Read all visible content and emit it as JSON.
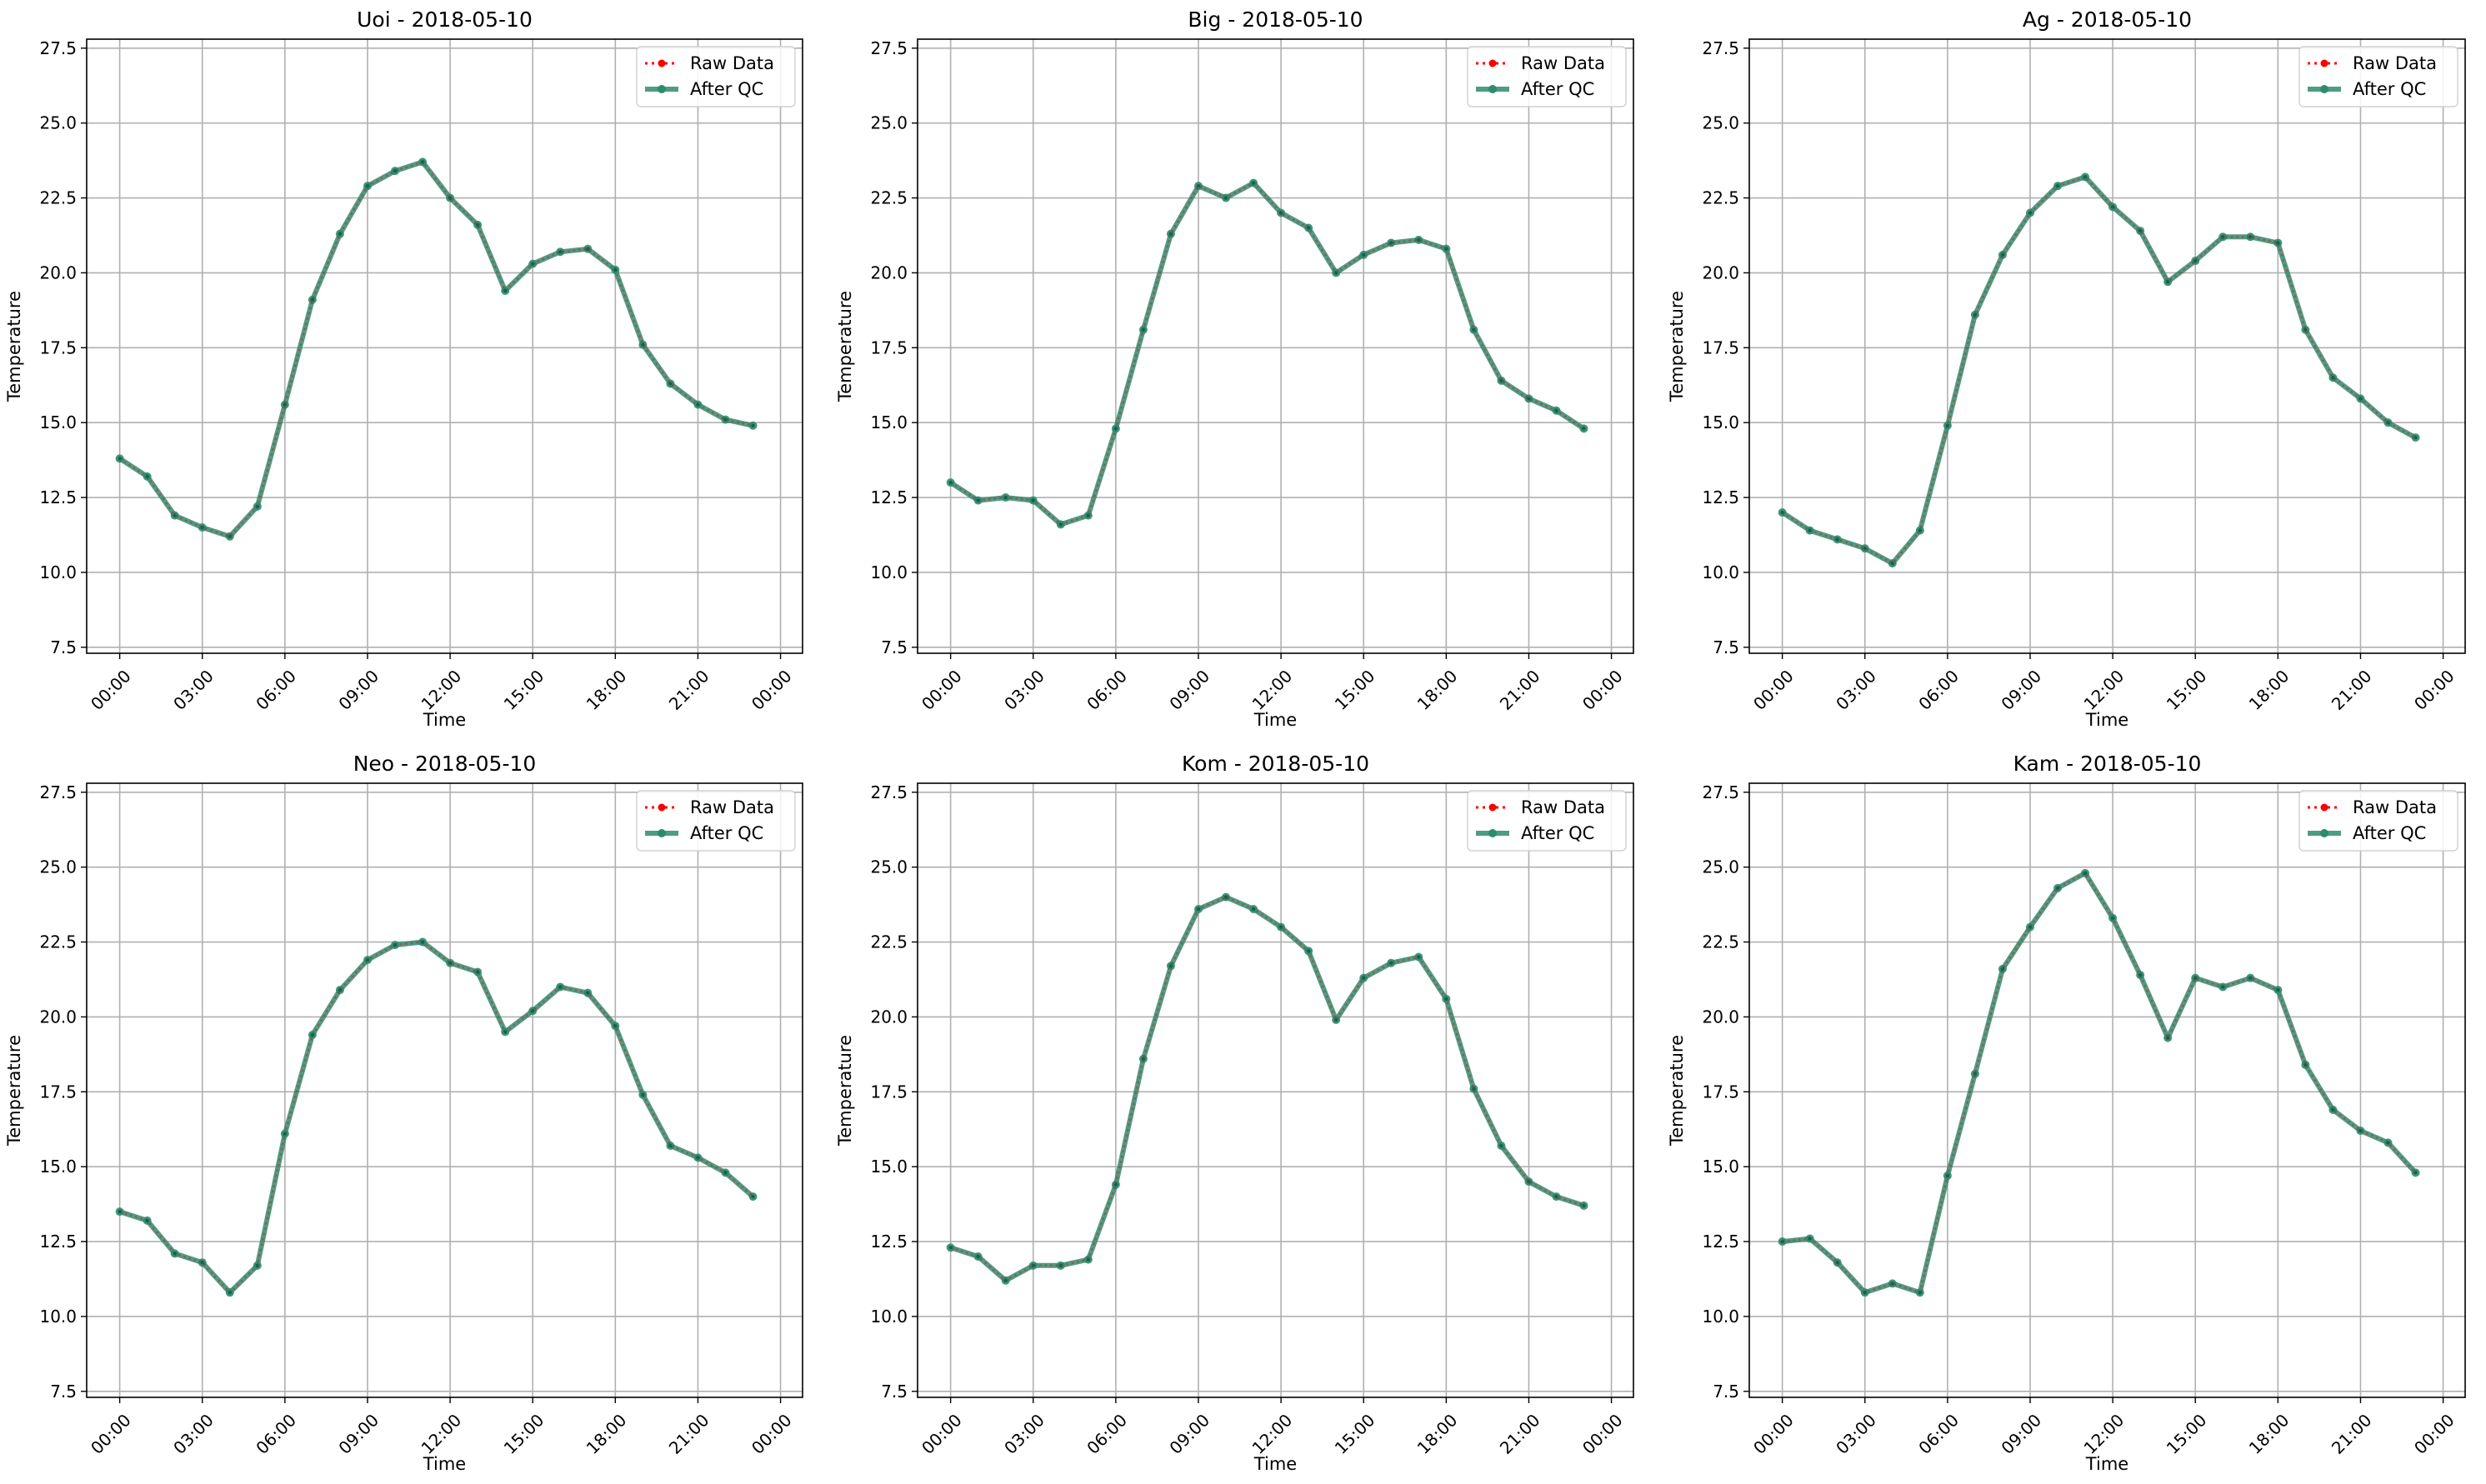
{
  "figure": {
    "grid": true
  },
  "legend": {
    "placement": "top-right",
    "entries": [
      {
        "label": "Raw Data",
        "color": "#ff0000",
        "style": "dotted",
        "marker": "circle"
      },
      {
        "label": "After QC",
        "color": "#2e8b6e",
        "style": "solid",
        "marker": "circle"
      }
    ]
  },
  "chart_data": [
    {
      "type": "line",
      "title": "Uoi - 2018-05-10",
      "xlabel": "Time",
      "ylabel": "Temperature",
      "ylim": [
        7.3,
        27.8
      ],
      "yticks": [
        "7.5",
        "10.0",
        "12.5",
        "15.0",
        "17.5",
        "20.0",
        "22.5",
        "25.0",
        "27.5"
      ],
      "xticks": [
        "00:00",
        "03:00",
        "06:00",
        "09:00",
        "12:00",
        "15:00",
        "18:00",
        "21:00",
        "00:00"
      ],
      "x": [
        "00:00",
        "01:00",
        "02:00",
        "03:00",
        "04:00",
        "05:00",
        "06:00",
        "07:00",
        "08:00",
        "09:00",
        "10:00",
        "11:00",
        "12:00",
        "13:00",
        "14:00",
        "15:00",
        "16:00",
        "17:00",
        "18:00",
        "19:00",
        "20:00",
        "21:00",
        "22:00",
        "23:00"
      ],
      "series": [
        {
          "name": "Raw Data",
          "values": [
            13.8,
            13.2,
            11.9,
            11.5,
            11.2,
            12.2,
            15.6,
            19.1,
            21.3,
            22.9,
            23.4,
            23.7,
            22.5,
            21.6,
            19.4,
            20.3,
            20.7,
            20.8,
            20.1,
            17.6,
            16.3,
            15.6,
            15.1,
            14.9
          ]
        },
        {
          "name": "After QC",
          "values": [
            13.8,
            13.2,
            11.9,
            11.5,
            11.2,
            12.2,
            15.6,
            19.1,
            21.3,
            22.9,
            23.4,
            23.7,
            22.5,
            21.6,
            19.4,
            20.3,
            20.7,
            20.8,
            20.1,
            17.6,
            16.3,
            15.6,
            15.1,
            14.9
          ]
        }
      ]
    },
    {
      "type": "line",
      "title": "Big - 2018-05-10",
      "xlabel": "Time",
      "ylabel": "Temperature",
      "ylim": [
        7.3,
        27.8
      ],
      "yticks": [
        "7.5",
        "10.0",
        "12.5",
        "15.0",
        "17.5",
        "20.0",
        "22.5",
        "25.0",
        "27.5"
      ],
      "xticks": [
        "00:00",
        "03:00",
        "06:00",
        "09:00",
        "12:00",
        "15:00",
        "18:00",
        "21:00",
        "00:00"
      ],
      "x": [
        "00:00",
        "01:00",
        "02:00",
        "03:00",
        "04:00",
        "05:00",
        "06:00",
        "07:00",
        "08:00",
        "09:00",
        "10:00",
        "11:00",
        "12:00",
        "13:00",
        "14:00",
        "15:00",
        "16:00",
        "17:00",
        "18:00",
        "19:00",
        "20:00",
        "21:00",
        "22:00",
        "23:00"
      ],
      "series": [
        {
          "name": "Raw Data",
          "values": [
            13.0,
            12.4,
            12.5,
            12.4,
            11.6,
            11.9,
            14.8,
            18.1,
            21.3,
            22.9,
            22.5,
            23.0,
            22.0,
            21.5,
            20.0,
            20.6,
            21.0,
            21.1,
            20.8,
            18.1,
            16.4,
            15.8,
            15.4,
            14.8
          ]
        },
        {
          "name": "After QC",
          "values": [
            13.0,
            12.4,
            12.5,
            12.4,
            11.6,
            11.9,
            14.8,
            18.1,
            21.3,
            22.9,
            22.5,
            23.0,
            22.0,
            21.5,
            20.0,
            20.6,
            21.0,
            21.1,
            20.8,
            18.1,
            16.4,
            15.8,
            15.4,
            14.8
          ]
        }
      ]
    },
    {
      "type": "line",
      "title": "Ag - 2018-05-10",
      "xlabel": "Time",
      "ylabel": "Temperature",
      "ylim": [
        7.3,
        27.8
      ],
      "yticks": [
        "7.5",
        "10.0",
        "12.5",
        "15.0",
        "17.5",
        "20.0",
        "22.5",
        "25.0",
        "27.5"
      ],
      "xticks": [
        "00:00",
        "03:00",
        "06:00",
        "09:00",
        "12:00",
        "15:00",
        "18:00",
        "21:00",
        "00:00"
      ],
      "x": [
        "00:00",
        "01:00",
        "02:00",
        "03:00",
        "04:00",
        "05:00",
        "06:00",
        "07:00",
        "08:00",
        "09:00",
        "10:00",
        "11:00",
        "12:00",
        "13:00",
        "14:00",
        "15:00",
        "16:00",
        "17:00",
        "18:00",
        "19:00",
        "20:00",
        "21:00",
        "22:00",
        "23:00"
      ],
      "series": [
        {
          "name": "Raw Data",
          "values": [
            12.0,
            11.4,
            11.1,
            10.8,
            10.3,
            11.4,
            14.9,
            18.6,
            20.6,
            22.0,
            22.9,
            23.2,
            22.2,
            21.4,
            19.7,
            20.4,
            21.2,
            21.2,
            21.0,
            18.1,
            16.5,
            15.8,
            15.0,
            14.5
          ]
        },
        {
          "name": "After QC",
          "values": [
            12.0,
            11.4,
            11.1,
            10.8,
            10.3,
            11.4,
            14.9,
            18.6,
            20.6,
            22.0,
            22.9,
            23.2,
            22.2,
            21.4,
            19.7,
            20.4,
            21.2,
            21.2,
            21.0,
            18.1,
            16.5,
            15.8,
            15.0,
            14.5
          ]
        }
      ]
    },
    {
      "type": "line",
      "title": "Neo - 2018-05-10",
      "xlabel": "Time",
      "ylabel": "Temperature",
      "ylim": [
        7.3,
        27.8
      ],
      "yticks": [
        "7.5",
        "10.0",
        "12.5",
        "15.0",
        "17.5",
        "20.0",
        "22.5",
        "25.0",
        "27.5"
      ],
      "xticks": [
        "00:00",
        "03:00",
        "06:00",
        "09:00",
        "12:00",
        "15:00",
        "18:00",
        "21:00",
        "00:00"
      ],
      "x": [
        "00:00",
        "01:00",
        "02:00",
        "03:00",
        "04:00",
        "05:00",
        "06:00",
        "07:00",
        "08:00",
        "09:00",
        "10:00",
        "11:00",
        "12:00",
        "13:00",
        "14:00",
        "15:00",
        "16:00",
        "17:00",
        "18:00",
        "19:00",
        "20:00",
        "21:00",
        "22:00",
        "23:00"
      ],
      "series": [
        {
          "name": "Raw Data",
          "values": [
            13.5,
            13.2,
            12.1,
            11.8,
            10.8,
            11.7,
            16.1,
            19.4,
            20.9,
            21.9,
            22.4,
            22.5,
            21.8,
            21.5,
            19.5,
            20.2,
            21.0,
            20.8,
            19.7,
            17.4,
            15.7,
            15.3,
            14.8,
            14.0
          ]
        },
        {
          "name": "After QC",
          "values": [
            13.5,
            13.2,
            12.1,
            11.8,
            10.8,
            11.7,
            16.1,
            19.4,
            20.9,
            21.9,
            22.4,
            22.5,
            21.8,
            21.5,
            19.5,
            20.2,
            21.0,
            20.8,
            19.7,
            17.4,
            15.7,
            15.3,
            14.8,
            14.0
          ]
        }
      ]
    },
    {
      "type": "line",
      "title": "Kom - 2018-05-10",
      "xlabel": "Time",
      "ylabel": "Temperature",
      "ylim": [
        7.3,
        27.8
      ],
      "yticks": [
        "7.5",
        "10.0",
        "12.5",
        "15.0",
        "17.5",
        "20.0",
        "22.5",
        "25.0",
        "27.5"
      ],
      "xticks": [
        "00:00",
        "03:00",
        "06:00",
        "09:00",
        "12:00",
        "15:00",
        "18:00",
        "21:00",
        "00:00"
      ],
      "x": [
        "00:00",
        "01:00",
        "02:00",
        "03:00",
        "04:00",
        "05:00",
        "06:00",
        "07:00",
        "08:00",
        "09:00",
        "10:00",
        "11:00",
        "12:00",
        "13:00",
        "14:00",
        "15:00",
        "16:00",
        "17:00",
        "18:00",
        "19:00",
        "20:00",
        "21:00",
        "22:00",
        "23:00"
      ],
      "series": [
        {
          "name": "Raw Data",
          "values": [
            12.3,
            12.0,
            11.2,
            11.7,
            11.7,
            11.9,
            14.4,
            18.6,
            21.7,
            23.6,
            24.0,
            23.6,
            23.0,
            22.2,
            19.9,
            21.3,
            21.8,
            22.0,
            20.6,
            17.6,
            15.7,
            14.5,
            14.0,
            13.7
          ]
        },
        {
          "name": "After QC",
          "values": [
            12.3,
            12.0,
            11.2,
            11.7,
            11.7,
            11.9,
            14.4,
            18.6,
            21.7,
            23.6,
            24.0,
            23.6,
            23.0,
            22.2,
            19.9,
            21.3,
            21.8,
            22.0,
            20.6,
            17.6,
            15.7,
            14.5,
            14.0,
            13.7
          ]
        }
      ]
    },
    {
      "type": "line",
      "title": "Kam - 2018-05-10",
      "xlabel": "Time",
      "ylabel": "Temperature",
      "ylim": [
        7.3,
        27.8
      ],
      "yticks": [
        "7.5",
        "10.0",
        "12.5",
        "15.0",
        "17.5",
        "20.0",
        "22.5",
        "25.0",
        "27.5"
      ],
      "xticks": [
        "00:00",
        "03:00",
        "06:00",
        "09:00",
        "12:00",
        "15:00",
        "18:00",
        "21:00",
        "00:00"
      ],
      "x": [
        "00:00",
        "01:00",
        "02:00",
        "03:00",
        "04:00",
        "05:00",
        "06:00",
        "07:00",
        "08:00",
        "09:00",
        "10:00",
        "11:00",
        "12:00",
        "13:00",
        "14:00",
        "15:00",
        "16:00",
        "17:00",
        "18:00",
        "19:00",
        "20:00",
        "21:00",
        "22:00",
        "23:00"
      ],
      "series": [
        {
          "name": "Raw Data",
          "values": [
            12.5,
            12.6,
            11.8,
            10.8,
            11.1,
            10.8,
            14.7,
            18.1,
            21.6,
            23.0,
            24.3,
            24.8,
            23.3,
            21.4,
            19.3,
            21.3,
            21.0,
            21.3,
            20.9,
            18.4,
            16.9,
            16.2,
            15.8,
            14.8
          ]
        },
        {
          "name": "After QC",
          "values": [
            12.5,
            12.6,
            11.8,
            10.8,
            11.1,
            10.8,
            14.7,
            18.1,
            21.6,
            23.0,
            24.3,
            24.8,
            23.3,
            21.4,
            19.3,
            21.3,
            21.0,
            21.3,
            20.9,
            18.4,
            16.9,
            16.2,
            15.8,
            14.8
          ]
        }
      ]
    }
  ]
}
